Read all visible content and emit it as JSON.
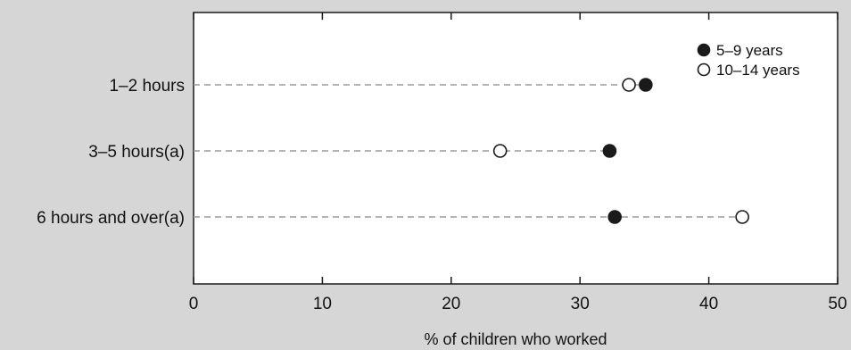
{
  "chart_data": {
    "type": "scatter",
    "title": "",
    "xlabel": "% of children who worked",
    "ylabel": "",
    "xlim": [
      0,
      50
    ],
    "xticks": [
      0,
      10,
      20,
      30,
      40,
      50
    ],
    "categories": [
      "1–2 hours",
      "3–5 hours(a)",
      "6 hours and over(a)"
    ],
    "series": [
      {
        "name": "5–9 years",
        "marker": "filled",
        "values": [
          35.1,
          32.3,
          32.7
        ]
      },
      {
        "name": "10–14 years",
        "marker": "open",
        "values": [
          33.8,
          23.8,
          42.6
        ]
      }
    ],
    "legend_position": "top-right",
    "grid": false,
    "colors": {
      "background": "#d6d6d6",
      "plot_bg": "#ffffff",
      "marker": "#1a1a1a",
      "dash": "#9a9a9a"
    }
  }
}
